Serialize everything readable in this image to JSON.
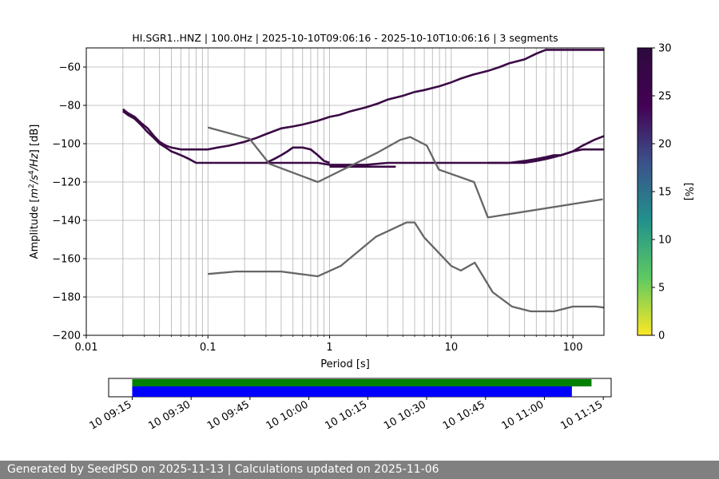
{
  "chart_data": [
    {
      "type": "heatmap",
      "title": "HI.SGR1..HNZ | 100.0Hz | 2025-10-10T09:06:16 - 2025-10-10T10:06:16 | 3 segments",
      "xlabel": "Period [s]",
      "ylabel_parts": [
        "Amplitude [",
        "m",
        "2",
        "/",
        "s",
        "4",
        "/",
        "Hz",
        "] [dB]"
      ],
      "xscale": "log",
      "xlim": [
        0.01,
        180
      ],
      "ylim": [
        -200,
        -50
      ],
      "x_ticks": [
        0.01,
        0.1,
        1,
        10,
        100
      ],
      "x_tick_labels": [
        "0.01",
        "0.1",
        "1",
        "10",
        "100"
      ],
      "y_ticks": [
        -200,
        -180,
        -160,
        -140,
        -120,
        -100,
        -80,
        -60
      ],
      "y_tick_labels": [
        "−200",
        "−180",
        "−160",
        "−140",
        "−120",
        "−100",
        "−80",
        "−60"
      ],
      "grid": true,
      "colorbar": {
        "label": "[%]",
        "range": [
          0,
          30
        ],
        "ticks": [
          0,
          5,
          10,
          15,
          20,
          25,
          30
        ],
        "tick_labels": [
          "0",
          "5",
          "10",
          "15",
          "20",
          "25",
          "30"
        ],
        "colormap": [
          "#fde725",
          "#5ec962",
          "#21918c",
          "#3b528b",
          "#440154",
          "#2d0a3e"
        ]
      },
      "psd_color": "#3b0a45",
      "psd_traces": [
        {
          "x": [
            0.02,
            0.022,
            0.025,
            0.028,
            0.032,
            0.036,
            0.04,
            0.045,
            0.05,
            0.06,
            0.07,
            0.08,
            0.1,
            0.12,
            0.15,
            0.2,
            0.25,
            0.3,
            0.4,
            0.5,
            0.6,
            0.8,
            1,
            1.2,
            1.5,
            2,
            2.5,
            3,
            4,
            5,
            6,
            8,
            10,
            12,
            15,
            20,
            25,
            30,
            40,
            50,
            60,
            70,
            80,
            100,
            120,
            150,
            180
          ],
          "y": [
            -82,
            -84,
            -86,
            -89,
            -92,
            -96,
            -99,
            -101,
            -102,
            -103,
            -103,
            -103,
            -103,
            -102,
            -101,
            -99,
            -97,
            -95,
            -92,
            -91,
            -90,
            -88,
            -86,
            -85,
            -83,
            -81,
            -79,
            -77,
            -75,
            -73,
            -72,
            -70,
            -68,
            -66,
            -64,
            -62,
            -60,
            -58,
            -56,
            -53,
            -51,
            -51,
            -51,
            -51,
            -51,
            -51,
            -51
          ]
        },
        {
          "x": [
            0.02,
            0.022,
            0.025,
            0.028,
            0.032,
            0.036,
            0.04,
            0.045,
            0.05,
            0.055,
            0.06,
            0.065,
            0.07,
            0.08,
            0.1,
            0.15,
            0.2,
            0.3,
            0.4,
            0.5,
            0.6,
            0.8,
            1,
            1.2,
            1.5,
            2,
            3,
            5,
            10,
            20,
            30,
            40,
            50,
            60,
            70,
            80,
            100,
            120,
            150,
            180
          ],
          "y": [
            -83,
            -85,
            -87,
            -90,
            -94,
            -97,
            -100,
            -102,
            -104,
            -105,
            -106,
            -107,
            -108,
            -110,
            -110,
            -110,
            -110,
            -110,
            -110,
            -110,
            -110,
            -110,
            -111,
            -111,
            -111,
            -111,
            -110,
            -110,
            -110,
            -110,
            -110,
            -110,
            -109,
            -108,
            -107,
            -106,
            -104,
            -101,
            -98,
            -96
          ]
        },
        {
          "x": [
            0.3,
            0.35,
            0.4,
            0.45,
            0.5,
            0.6,
            0.7,
            0.8,
            0.9,
            1
          ],
          "y": [
            -110,
            -108,
            -106,
            -104,
            -102,
            -102,
            -103,
            -106,
            -109,
            -110
          ]
        },
        {
          "x": [
            1,
            1.5,
            2,
            3,
            3.5
          ],
          "y": [
            -112,
            -112,
            -112,
            -112,
            -112
          ]
        },
        {
          "x": [
            20,
            30,
            40,
            50,
            60,
            70,
            80,
            100,
            120,
            150,
            180
          ],
          "y": [
            -110,
            -110,
            -109,
            -108,
            -107,
            -106,
            -106,
            -104,
            -103,
            -103,
            -103
          ]
        }
      ],
      "noise_model_color": "#666666",
      "noise_models": [
        {
          "name": "NHNM",
          "x": [
            0.1,
            0.22,
            0.32,
            0.8,
            2.5,
            3.8,
            4.6,
            6.3,
            7.9,
            15.4,
            20,
            176
          ],
          "y": [
            -91.5,
            -97.4,
            -110.5,
            -120,
            -104.5,
            -98,
            -96.5,
            -101,
            -113.5,
            -120,
            -138.5,
            -129
          ]
        },
        {
          "name": "NLNM",
          "x": [
            0.1,
            0.17,
            0.4,
            0.8,
            1.24,
            2.4,
            4.3,
            5,
            6,
            10,
            12,
            15.6,
            21.9,
            31.6,
            45,
            70,
            100,
            154,
            180
          ],
          "y": [
            -168,
            -166.7,
            -166.7,
            -169.2,
            -163.7,
            -148.6,
            -141.1,
            -141.1,
            -149,
            -163.8,
            -166.2,
            -162.1,
            -177.5,
            -185,
            -187.5,
            -187.5,
            -185,
            -185,
            -185.5
          ]
        }
      ]
    },
    {
      "type": "timeline",
      "tick_labels": [
        "10 09:15",
        "10 09:30",
        "10 09:45",
        "10 10:00",
        "10 10:15",
        "10 10:30",
        "10 10:45",
        "10 11:00",
        "10 11:15"
      ],
      "tick_times": [
        "09:15",
        "09:30",
        "09:45",
        "10:00",
        "10:15",
        "10:30",
        "10:45",
        "11:00",
        "11:15"
      ],
      "range": [
        "09:09",
        "11:17"
      ],
      "bars": [
        {
          "color": "#008000",
          "start": "09:15",
          "end": "11:12"
        },
        {
          "color": "#0000ff",
          "start": "09:15",
          "end": "11:07"
        }
      ]
    }
  ],
  "footer": {
    "text": "Generated by SeedPSD on 2025-11-13 | Calculations updated on 2025-11-06"
  }
}
